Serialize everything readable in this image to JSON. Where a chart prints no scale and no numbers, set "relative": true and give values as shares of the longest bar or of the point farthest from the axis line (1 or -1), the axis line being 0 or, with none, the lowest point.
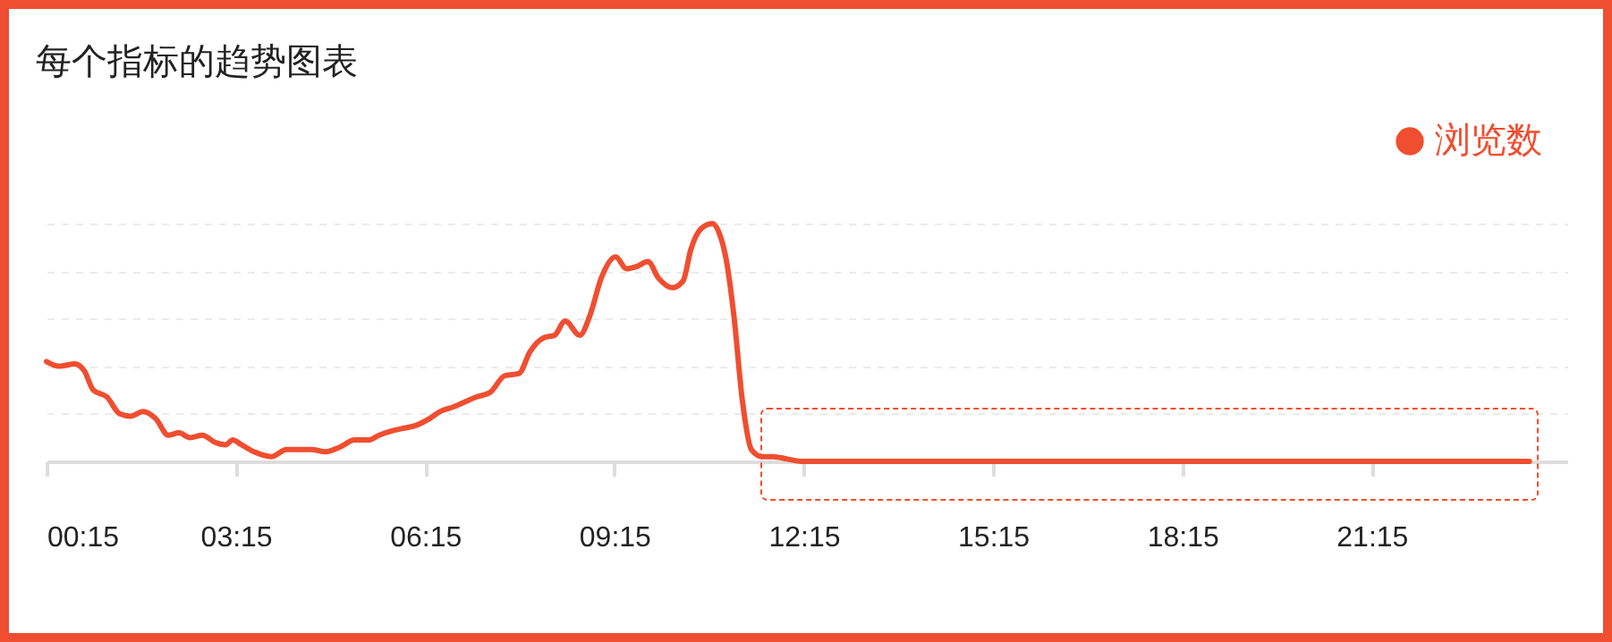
{
  "chart_data": {
    "type": "line",
    "title": "每个指标的趋势图表",
    "relative": true,
    "legend": "top right",
    "grid": "y",
    "xlim": [
      0.25,
      24.35
    ],
    "xticks": [
      {
        "value": 0.25,
        "label": "00:15"
      },
      {
        "value": 3.25,
        "label": "03:15"
      },
      {
        "value": 6.25,
        "label": "06:15"
      },
      {
        "value": 9.25,
        "label": "09:15"
      },
      {
        "value": 12.25,
        "label": "12:15"
      },
      {
        "value": 15.25,
        "label": "15:15"
      },
      {
        "value": 18.25,
        "label": "18:15"
      },
      {
        "value": 21.25,
        "label": "21:15"
      }
    ],
    "x": [
      0.25,
      0.45,
      0.7,
      0.85,
      0.99,
      1.21,
      1.41,
      1.58,
      1.78,
      1.98,
      2.18,
      2.35,
      2.52,
      2.72,
      2.92,
      3.09,
      3.2,
      3.34,
      3.54,
      3.82,
      4.05,
      4.25,
      4.45,
      4.67,
      4.9,
      5.13,
      5.35,
      5.52,
      5.75,
      5.92,
      6.09,
      6.32,
      6.49,
      6.71,
      6.88,
      7.05,
      7.28,
      7.51,
      7.74,
      7.91,
      8.13,
      8.3,
      8.47,
      8.7,
      8.87,
      9.04,
      9.27,
      9.44,
      9.61,
      9.78,
      9.95,
      10.17,
      10.34,
      10.46,
      10.63,
      10.8,
      10.91,
      11.02,
      11.14,
      11.28,
      11.42,
      11.59,
      11.76,
      11.99,
      12.21,
      13,
      15,
      17,
      19,
      21,
      23,
      23.75
    ],
    "series": [
      {
        "name": "浏览数",
        "color": "#f04e30",
        "values": [
          0.42,
          0.4,
          0.41,
          0.38,
          0.3,
          0.27,
          0.2,
          0.19,
          0.21,
          0.18,
          0.11,
          0.12,
          0.1,
          0.11,
          0.08,
          0.07,
          0.09,
          0.07,
          0.04,
          0.02,
          0.05,
          0.05,
          0.05,
          0.04,
          0.06,
          0.09,
          0.09,
          0.11,
          0.13,
          0.14,
          0.15,
          0.18,
          0.21,
          0.23,
          0.25,
          0.27,
          0.29,
          0.36,
          0.37,
          0.46,
          0.52,
          0.53,
          0.59,
          0.53,
          0.62,
          0.77,
          0.86,
          0.81,
          0.82,
          0.84,
          0.77,
          0.73,
          0.76,
          0.89,
          0.98,
          1,
          0.96,
          0.85,
          0.62,
          0.25,
          0.05,
          0.02,
          0.02,
          0.01,
          0,
          0,
          0,
          0,
          0,
          0,
          0,
          0
        ]
      }
    ],
    "marker": "none",
    "line_style": "solid"
  }
}
